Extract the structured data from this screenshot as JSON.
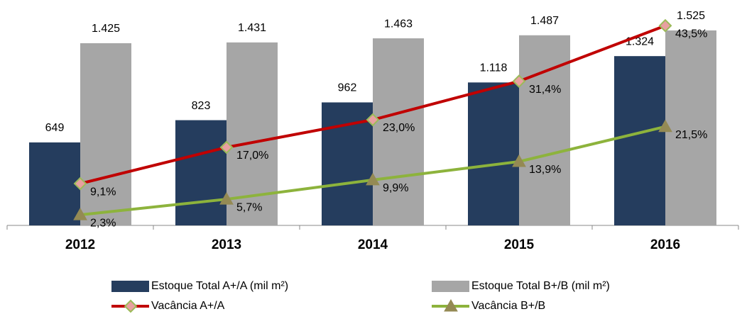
{
  "chart_data": {
    "type": "bar",
    "categories": [
      "2012",
      "2013",
      "2014",
      "2015",
      "2016"
    ],
    "ylim": [
      0,
      1652
    ],
    "y2lim": [
      0,
      46
    ],
    "series": [
      {
        "name": "Estoque Total A+/A (mil m²)",
        "type": "bar",
        "color": "#253d5e",
        "values": [
          649,
          823,
          962,
          1118,
          1324
        ],
        "value_labels": [
          "649",
          "823",
          "962",
          "1.118",
          "1.324"
        ]
      },
      {
        "name": "Estoque Total B+/B (mil m²)",
        "type": "bar",
        "color": "#a6a6a6",
        "values": [
          1425,
          1431,
          1463,
          1487,
          1525
        ],
        "value_labels": [
          "1.425",
          "1.431",
          "1.463",
          "1.487",
          "1.525"
        ]
      },
      {
        "name": "Vacância A+/A",
        "type": "line",
        "axis": "y2",
        "color": "#c00000",
        "marker": "diamond",
        "values": [
          9.1,
          17.0,
          23.0,
          31.4,
          43.5
        ],
        "value_labels": [
          "9,1%",
          "17,0%",
          "23,0%",
          "31,4%",
          "43,5%"
        ]
      },
      {
        "name": "Vacância B+/B",
        "type": "line",
        "axis": "y2",
        "color": "#8db33c",
        "marker": "triangle",
        "values": [
          2.3,
          5.7,
          9.9,
          13.9,
          21.5
        ],
        "value_labels": [
          "2,3%",
          "5,7%",
          "9,9%",
          "13,9%",
          "21,5%"
        ]
      }
    ]
  }
}
